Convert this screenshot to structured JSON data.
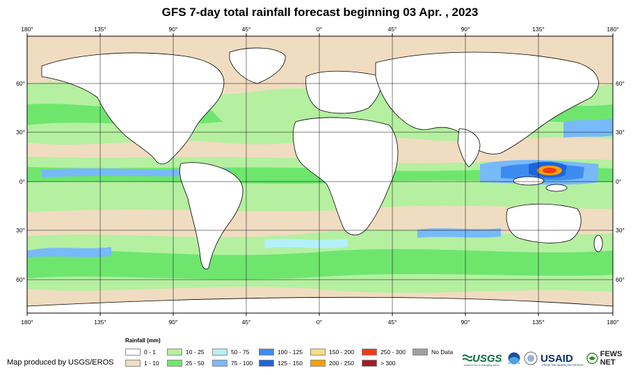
{
  "title": "GFS 7-day total rainfall forecast beginning 03 Apr. , 2023",
  "map": {
    "lon_ticks": [
      "180°",
      "135°",
      "90°",
      "45°",
      "0°",
      "45°",
      "90°",
      "135°",
      "180°"
    ],
    "lat_ticks": [
      "60°",
      "30°",
      "0°",
      "30°",
      "60°"
    ],
    "colors": {
      "ocean_default": "#f0dcc0",
      "land": "#ffffff",
      "graticule": "#000000"
    }
  },
  "legend": {
    "title": "Rainfall (mm)",
    "items": [
      {
        "label": "0 - 1",
        "color": "#ffffff"
      },
      {
        "label": "1 - 10",
        "color": "#f0dcc0"
      },
      {
        "label": "10 - 25",
        "color": "#b4f0a0"
      },
      {
        "label": "25 - 50",
        "color": "#6ee66e"
      },
      {
        "label": "50 - 75",
        "color": "#b4f0fa"
      },
      {
        "label": "75 - 100",
        "color": "#78b9fa"
      },
      {
        "label": "100 - 125",
        "color": "#3c8cf0"
      },
      {
        "label": "125 - 150",
        "color": "#1e64dc"
      },
      {
        "label": "150 - 200",
        "color": "#fadc82"
      },
      {
        "label": "200 - 250",
        "color": "#faa000"
      },
      {
        "label": "250 - 300",
        "color": "#f03c14"
      },
      {
        "label": "> 300",
        "color": "#a01e1e"
      },
      {
        "label": "No Data",
        "color": "#a0a0a0"
      }
    ]
  },
  "credit": "Map produced by USGS/EROS",
  "logos": {
    "usgs": "USGS",
    "usgs_tagline": "science for a changing world",
    "usaid": "USAID",
    "usaid_tagline": "FROM THE AMERICAN PEOPLE",
    "fews": "FEWS NET"
  }
}
